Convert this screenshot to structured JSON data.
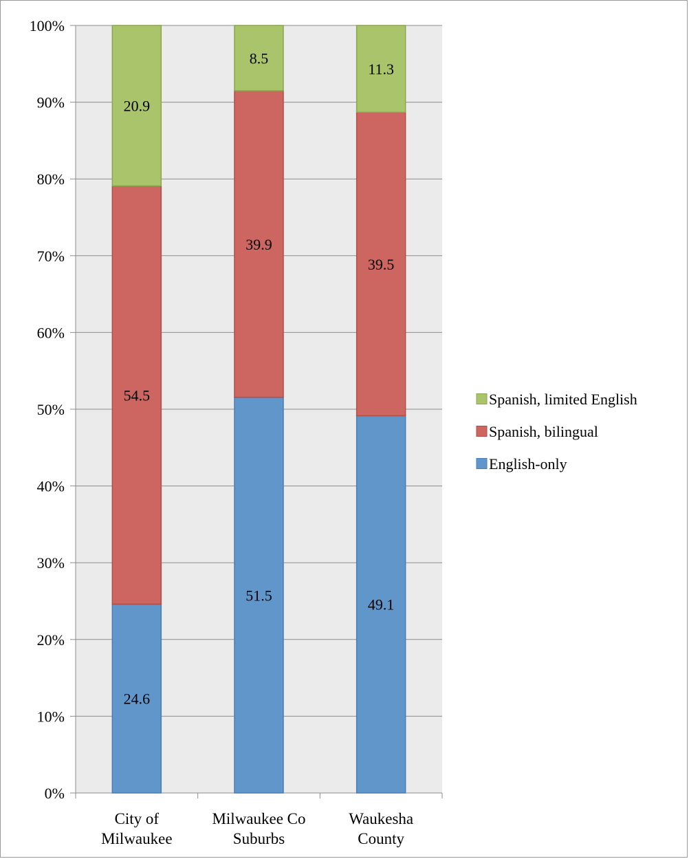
{
  "chart_data": {
    "type": "bar",
    "stacked": true,
    "percent_stacked": true,
    "categories": [
      [
        "City of",
        "Milwaukee"
      ],
      [
        "Milwaukee Co",
        "Suburbs"
      ],
      [
        "Waukesha",
        "County"
      ]
    ],
    "series": [
      {
        "name": "English-only",
        "values": [
          24.6,
          51.5,
          49.1
        ],
        "labels": [
          "24.6",
          "51.5",
          "49.1"
        ],
        "color": "#6196CB",
        "stroke": "#4A7DB5"
      },
      {
        "name": "Spanish, bilingual",
        "values": [
          54.5,
          39.9,
          39.5
        ],
        "labels": [
          "54.5",
          "39.9",
          "39.5"
        ],
        "color": "#CD6660",
        "stroke": "#B04E48"
      },
      {
        "name": "Spanish, limited English",
        "values": [
          20.9,
          8.5,
          11.3
        ],
        "labels": [
          "20.9",
          "8.5",
          "11.3"
        ],
        "color": "#A9C46B",
        "stroke": "#8AA64E"
      }
    ],
    "y_ticks": [
      "0%",
      "10%",
      "20%",
      "30%",
      "40%",
      "50%",
      "60%",
      "70%",
      "80%",
      "90%",
      "100%"
    ],
    "ylim": [
      0,
      100
    ],
    "grid": true,
    "plot_background": "#EBEBEB",
    "legend_position": "right",
    "legend_order": [
      "Spanish, limited English",
      "Spanish, bilingual",
      "English-only"
    ]
  }
}
